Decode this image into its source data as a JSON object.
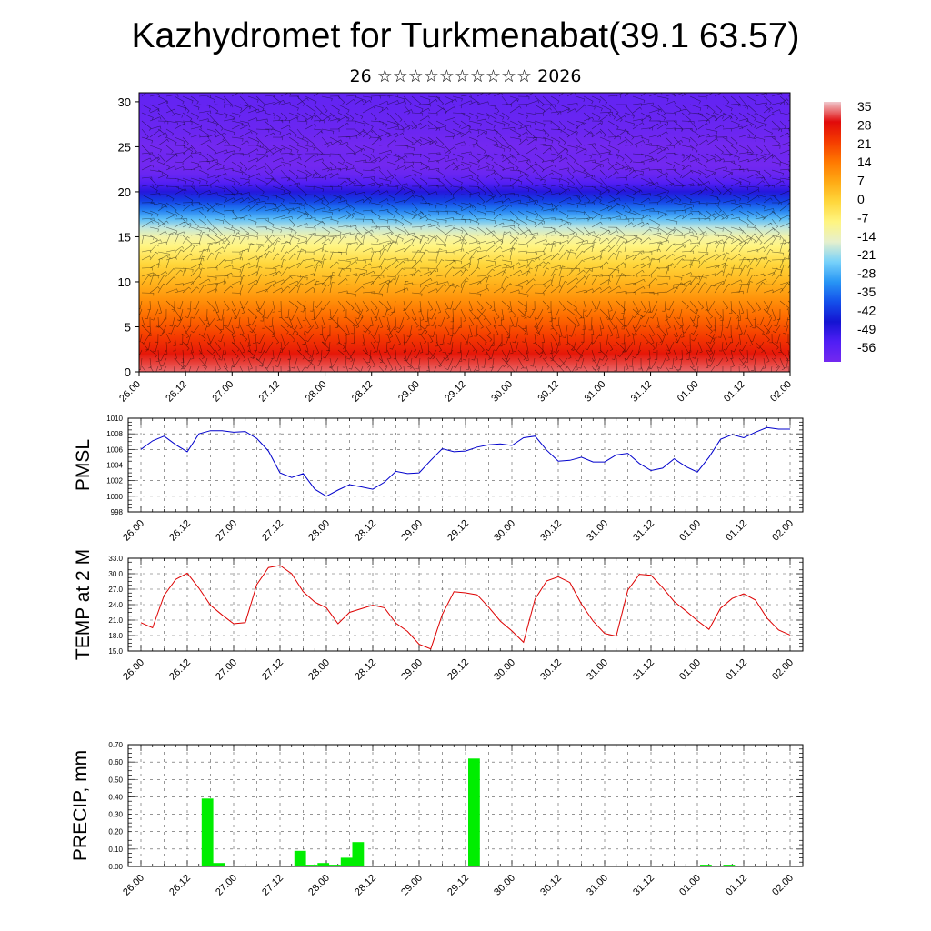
{
  "header": {
    "title": "Kazhydromet for Turkmenabat(39.1 63.57)",
    "subtitle": "26 ☆☆☆☆☆☆☆☆☆☆ 2026"
  },
  "colors": {
    "pmsl_line": "#0000cc",
    "temp_line": "#dd0000",
    "precip_bar": "#00ee00",
    "grid": "#555555"
  },
  "chart_data": [
    {
      "id": "cross-section",
      "type": "heatmap",
      "title": "",
      "xlabel": "",
      "ylabel": "",
      "x_tick_labels": [
        "26.00",
        "26.12",
        "27.00",
        "27.12",
        "28.00",
        "28.12",
        "29.00",
        "29.12",
        "30.00",
        "30.12",
        "31.00",
        "31.12",
        "01.00",
        "01.12",
        "02.00"
      ],
      "y_ticks": [
        0,
        5,
        10,
        15,
        20,
        25,
        30
      ],
      "ylim": [
        0,
        31
      ],
      "colorbar_labels": [
        "35",
        "28",
        "21",
        "14",
        "7",
        "0",
        "-7",
        "-14",
        "-21",
        "-28",
        "-35",
        "-42",
        "-49",
        "-56"
      ],
      "height_km": [
        0,
        2,
        4,
        6,
        8,
        10,
        12,
        14,
        15,
        16,
        17,
        18,
        19,
        20,
        21,
        22,
        23,
        24,
        25,
        27,
        31
      ],
      "temperature_c": [
        32,
        26,
        20,
        14,
        8,
        2,
        -4,
        -10,
        -13,
        -18,
        -25,
        -33,
        -40,
        -47,
        -53,
        -58,
        -60,
        -59,
        -61,
        -58,
        -56
      ]
    },
    {
      "id": "pmsl",
      "type": "line",
      "title": "",
      "ylabel": "PMSL",
      "x_tick_labels": [
        "26.00",
        "26.12",
        "27.00",
        "27.12",
        "28.00",
        "28.12",
        "29.00",
        "29.12",
        "30.00",
        "30.12",
        "31.00",
        "31.12",
        "01.00",
        "01.12",
        "02.00"
      ],
      "ylim": [
        998,
        1010
      ],
      "y_ticks": [
        998,
        1000,
        1002,
        1004,
        1006,
        1008,
        1010
      ],
      "y_tick_labels": [
        "998",
        "1000",
        "1002",
        "1004",
        "1006",
        "1008",
        "1010"
      ],
      "series": [
        {
          "name": "PMSL",
          "values": [
            1006.0,
            1007.1,
            1007.7,
            1006.6,
            1005.7,
            1008.0,
            1008.4,
            1008.4,
            1008.2,
            1008.3,
            1007.4,
            1005.8,
            1003.0,
            1002.4,
            1002.9,
            1000.9,
            1000.0,
            1000.8,
            1001.5,
            1001.2,
            1000.9,
            1001.8,
            1003.2,
            1002.9,
            1003.0,
            1004.6,
            1006.1,
            1005.7,
            1005.8,
            1006.3,
            1006.6,
            1006.7,
            1006.5,
            1007.5,
            1007.7,
            1005.9,
            1004.5,
            1004.6,
            1005.0,
            1004.4,
            1004.4,
            1005.3,
            1005.5,
            1004.2,
            1003.3,
            1003.6,
            1004.8,
            1003.8,
            1003.1,
            1005.0,
            1007.3,
            1007.9,
            1007.5,
            1008.2,
            1008.8,
            1008.6,
            1008.6
          ]
        }
      ]
    },
    {
      "id": "temp2m",
      "type": "line",
      "title": "",
      "ylabel": "TEMP at 2 M",
      "x_tick_labels": [
        "26.00",
        "26.12",
        "27.00",
        "27.12",
        "28.00",
        "28.12",
        "29.00",
        "29.12",
        "30.00",
        "30.12",
        "31.00",
        "31.12",
        "01.00",
        "01.12",
        "02.00"
      ],
      "ylim": [
        15,
        33
      ],
      "y_ticks": [
        15,
        18,
        21,
        24,
        27,
        30,
        33
      ],
      "y_tick_labels": [
        "15.0",
        "18.0",
        "21.0",
        "24.0",
        "27.0",
        "30.0",
        "33.0"
      ],
      "series": [
        {
          "name": "TEMP",
          "values": [
            20.5,
            19.5,
            25.8,
            28.9,
            30.1,
            27.2,
            23.9,
            22.0,
            20.3,
            20.5,
            27.9,
            31.2,
            31.6,
            30.0,
            26.5,
            24.5,
            23.4,
            20.3,
            22.5,
            23.2,
            23.9,
            23.4,
            20.4,
            18.8,
            16.3,
            15.4,
            22.1,
            26.5,
            26.3,
            25.9,
            23.5,
            20.8,
            18.9,
            16.7,
            25.1,
            28.6,
            29.4,
            28.3,
            24.1,
            20.8,
            18.4,
            17.9,
            26.8,
            29.9,
            29.7,
            27.3,
            24.6,
            22.8,
            20.9,
            19.2,
            23.3,
            25.2,
            26.1,
            24.9,
            21.4,
            19.1,
            18.1
          ]
        }
      ]
    },
    {
      "id": "precip",
      "type": "bar",
      "title": "",
      "ylabel": "PRECIP, mm",
      "x_tick_labels": [
        "26.00",
        "26.12",
        "27.00",
        "27.12",
        "28.00",
        "28.12",
        "29.00",
        "29.12",
        "30.00",
        "30.12",
        "31.00",
        "31.12",
        "01.00",
        "01.12",
        "02.00"
      ],
      "ylim": [
        0,
        0.7
      ],
      "y_ticks": [
        0,
        0.1,
        0.2,
        0.3,
        0.4,
        0.5,
        0.6,
        0.7
      ],
      "y_tick_labels": [
        "0.00",
        "0.10",
        "0.20",
        "0.30",
        "0.40",
        "0.50",
        "0.60",
        "0.70"
      ],
      "series": [
        {
          "name": "PRECIP",
          "values": [
            0,
            0,
            0,
            0,
            0,
            0.39,
            0.02,
            0,
            0,
            0,
            0,
            0,
            0,
            0.09,
            0.01,
            0.02,
            0.01,
            0.05,
            0.14,
            0,
            0,
            0,
            0,
            0,
            0,
            0,
            0,
            0,
            0.62,
            0,
            0,
            0,
            0,
            0,
            0,
            0,
            0,
            0,
            0,
            0,
            0,
            0,
            0,
            0,
            0,
            0,
            0,
            0,
            0.01,
            0,
            0.01,
            0,
            0,
            0,
            0,
            0
          ]
        }
      ]
    }
  ]
}
